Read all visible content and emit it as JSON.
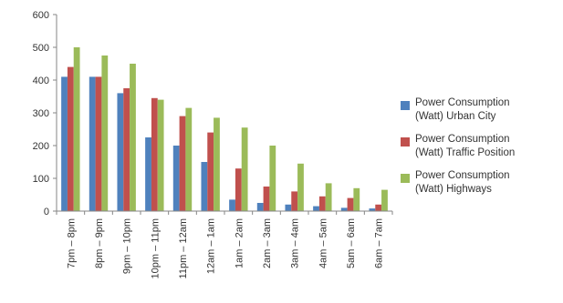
{
  "chart_data": {
    "type": "bar",
    "title": "",
    "xlabel": "",
    "ylabel": "",
    "ylim": [
      0,
      600
    ],
    "yticks": [
      "0",
      "100",
      "200",
      "300",
      "400",
      "500",
      "600"
    ],
    "grid": false,
    "legend_position": "right",
    "categories": [
      "7pm – 8pm",
      "8pm – 9pm",
      "9pm – 10pm",
      "10pm – 11pm",
      "11pm – 12am",
      "12am – 1am",
      "1am – 2am",
      "2am – 3am",
      "3am – 4am",
      "4am – 5am",
      "5am – 6am",
      "6am – 7am"
    ],
    "series": [
      {
        "name": "Power Consumption (Watt) Urban City",
        "name_lines": [
          "Power Consumption",
          "(Watt) Urban City"
        ],
        "color": "#4F81BD",
        "values": [
          410,
          410,
          360,
          225,
          200,
          150,
          35,
          25,
          20,
          15,
          10,
          8
        ]
      },
      {
        "name": "Power Consumption (Watt) Traffic Position",
        "name_lines": [
          "Power Consumption",
          "(Watt) Traffic Position"
        ],
        "color": "#C0504D",
        "values": [
          440,
          410,
          375,
          345,
          290,
          240,
          130,
          75,
          60,
          45,
          40,
          20
        ]
      },
      {
        "name": "Power Consumption (Watt) Highways",
        "name_lines": [
          "Power Consumption",
          "(Watt) Highways"
        ],
        "color": "#9BBB59",
        "values": [
          500,
          475,
          450,
          340,
          315,
          285,
          255,
          200,
          145,
          85,
          70,
          65
        ]
      }
    ]
  }
}
